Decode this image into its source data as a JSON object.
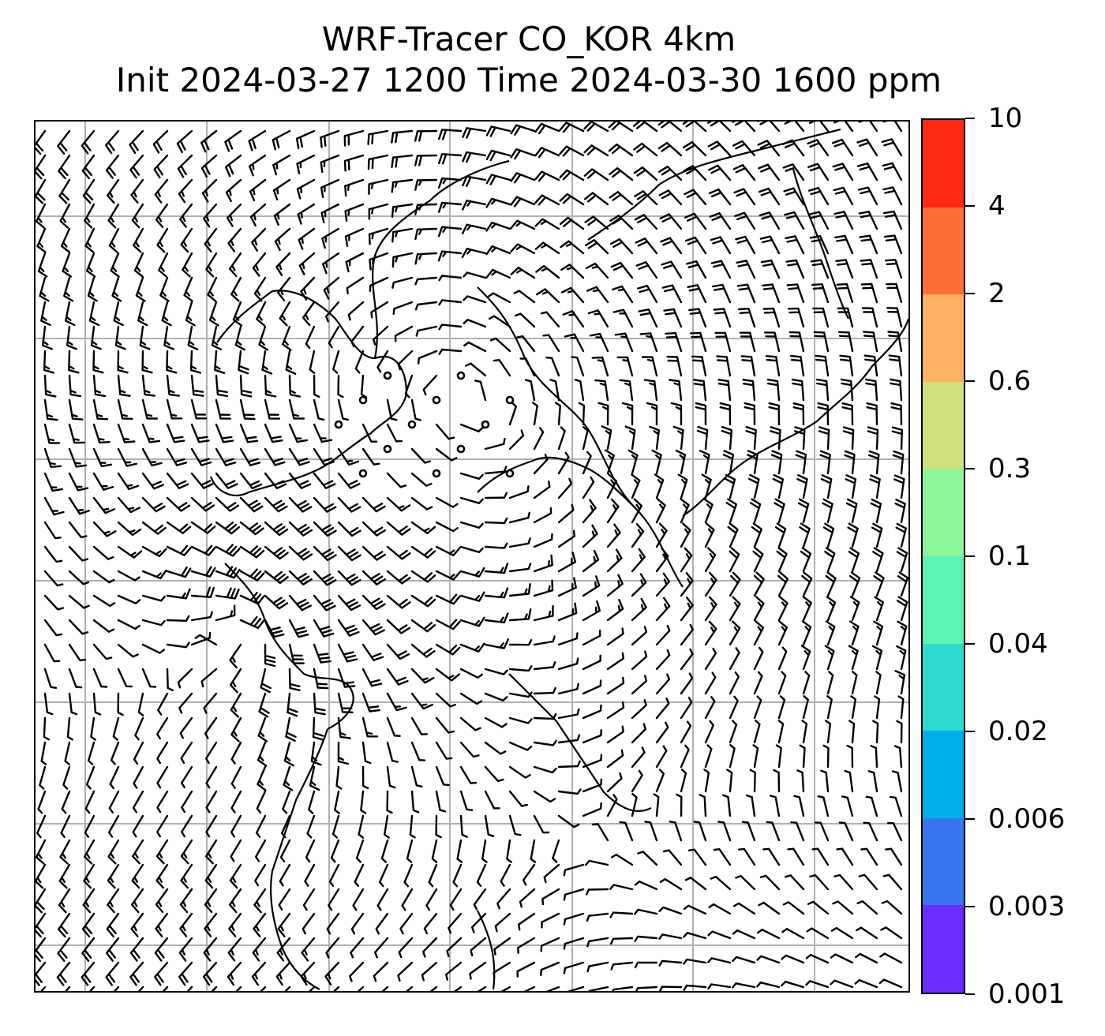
{
  "title": {
    "line1": "WRF-Tracer CO_KOR 4km",
    "line2": "Init 2024-03-27 1200 Time 2024-03-30 1600 ppm"
  },
  "map": {
    "background": "#ffffff",
    "gridline_color": "#b0b0b0",
    "barb_color": "#000000",
    "coastline_color": "#000000",
    "content": "wind barbs over East Asia with coastlines and lat/lon gridlines"
  },
  "colorbar": {
    "units": "ppm",
    "levels": [
      "0.001",
      "0.003",
      "0.006",
      "0.02",
      "0.04",
      "0.1",
      "0.3",
      "0.6",
      "2",
      "4",
      "10"
    ],
    "colors": [
      "#6a2cff",
      "#3a75f0",
      "#00b0ea",
      "#2fdcd0",
      "#5af5b5",
      "#8ef59a",
      "#cfe07d",
      "#ffb061",
      "#ff6e36",
      "#ff2a12"
    ]
  }
}
